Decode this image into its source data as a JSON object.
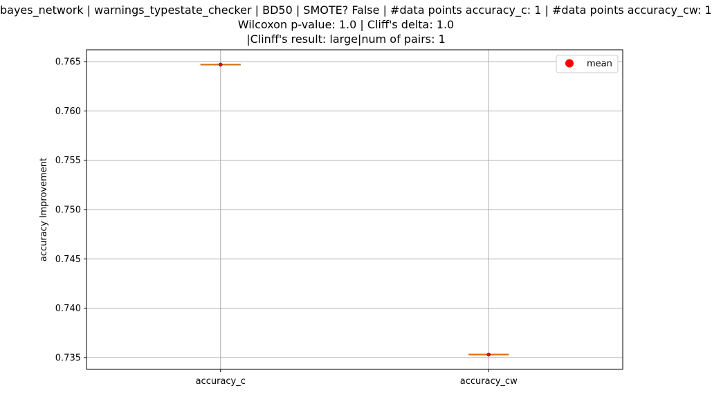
{
  "chart_data": {
    "type": "box",
    "title_lines": [
      "bayes_network | warnings_typestate_checker | BD50 | SMOTE? False | #data points accuracy_c: 1 | #data points accuracy_cw: 1",
      "Wilcoxon p-value: 1.0 | Cliff's delta: 1.0",
      "|Clinff's result: large|num of pairs: 1"
    ],
    "ylabel": "accuracy Improvement",
    "xlabel": "",
    "categories": [
      "accuracy_c",
      "accuracy_cw"
    ],
    "values": [
      0.7647,
      0.7353
    ],
    "means": [
      0.7647,
      0.7353
    ],
    "ylim": [
      0.7338,
      0.7662
    ],
    "yticks": [
      0.735,
      0.74,
      0.745,
      0.75,
      0.755,
      0.76,
      0.765
    ],
    "ytick_labels": [
      "0.735",
      "0.740",
      "0.745",
      "0.750",
      "0.755",
      "0.760",
      "0.765"
    ],
    "grid": true,
    "legend": {
      "placement": "top-right",
      "entries": [
        {
          "label": "mean",
          "color": "#ff0000",
          "marker": "circle"
        }
      ]
    },
    "colors": {
      "box": "#ff7f0e",
      "mean": "#ff0000",
      "grid": "#b0b0b0",
      "axis": "#000000"
    }
  }
}
